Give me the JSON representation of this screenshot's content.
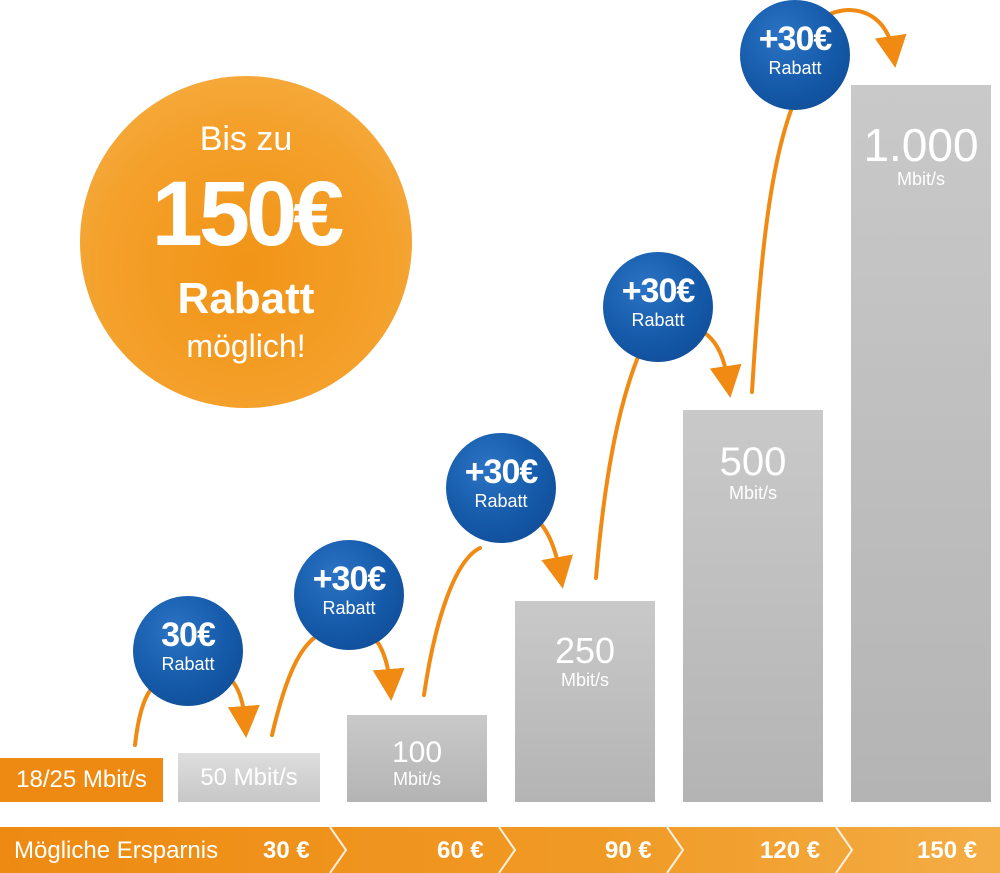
{
  "promo": {
    "line1": "Bis zu",
    "line2": "150€",
    "line3": "Rabatt",
    "line4": "möglich!"
  },
  "chart_data": {
    "type": "bar",
    "categories": [
      "18/25 Mbit/s",
      "50 Mbit/s",
      "100 Mbit/s",
      "250 Mbit/s",
      "500 Mbit/s",
      "1.000 Mbit/s"
    ],
    "values": [
      25,
      50,
      100,
      250,
      500,
      1000
    ],
    "bar_labels": [
      {
        "value": "18/25 Mbit/s",
        "unit": ""
      },
      {
        "value": "50 Mbit/s",
        "unit": ""
      },
      {
        "value": "100",
        "unit": "Mbit/s"
      },
      {
        "value": "250",
        "unit": "Mbit/s"
      },
      {
        "value": "500",
        "unit": "Mbit/s"
      },
      {
        "value": "1.000",
        "unit": "Mbit/s"
      }
    ],
    "badges": [
      {
        "amount": "30€",
        "label": "Rabatt"
      },
      {
        "amount": "+30€",
        "label": "Rabatt"
      },
      {
        "amount": "+30€",
        "label": "Rabatt"
      },
      {
        "amount": "+30€",
        "label": "Rabatt"
      },
      {
        "amount": "+30€",
        "label": "Rabatt"
      }
    ],
    "savings_title": "Mögliche Ersparnis",
    "savings": [
      "30 €",
      "60 €",
      "90 €",
      "120 €",
      "150 €"
    ]
  },
  "colors": {
    "orange": "#ee8a12",
    "blue": "#1459a8",
    "bar_gray": "#c4c4c4"
  }
}
